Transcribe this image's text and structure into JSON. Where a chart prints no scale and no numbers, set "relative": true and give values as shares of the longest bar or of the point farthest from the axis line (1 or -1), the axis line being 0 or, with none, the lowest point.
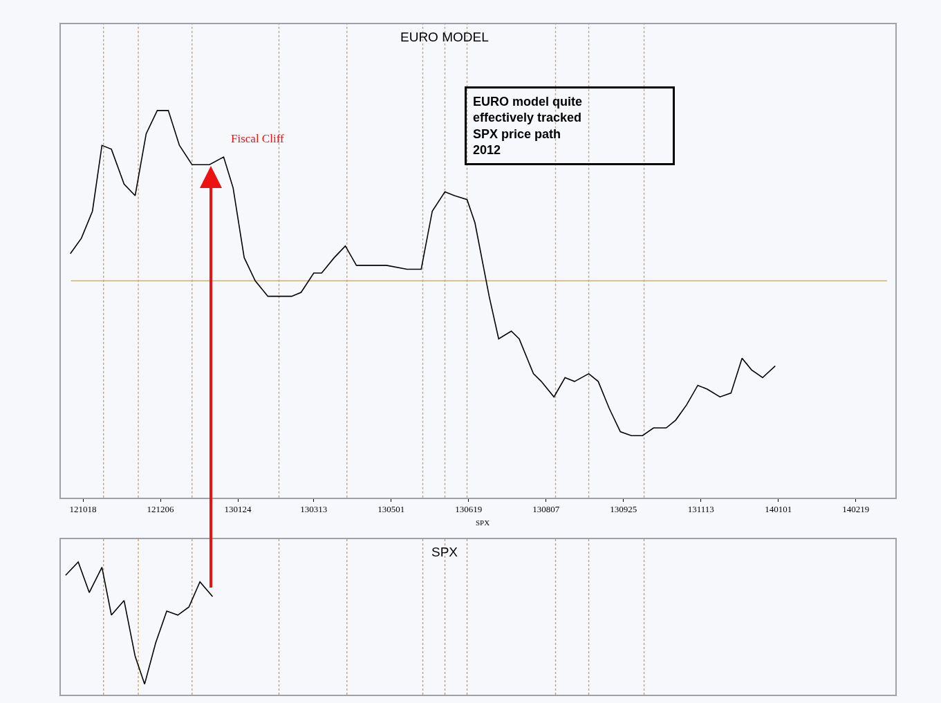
{
  "chart_data": [
    {
      "type": "line",
      "title": "EURO MODEL",
      "xlabel": "SPX",
      "relative": true,
      "color": "#000000",
      "line_style": "solid",
      "x": [
        "2012-10-10",
        "2012-10-17",
        "2012-10-24",
        "2012-10-30",
        "2012-11-05",
        "2012-11-13",
        "2012-11-20",
        "2012-11-27",
        "2012-12-04",
        "2012-12-11",
        "2012-12-18",
        "2012-12-26",
        "2013-01-06",
        "2013-01-15",
        "2013-01-21",
        "2013-01-28",
        "2013-02-04",
        "2013-02-12",
        "2013-02-20",
        "2013-02-27",
        "2013-03-05",
        "2013-03-13",
        "2013-03-18",
        "2013-03-26",
        "2013-04-02",
        "2013-04-09",
        "2013-04-15",
        "2013-04-28",
        "2013-05-11",
        "2013-05-20",
        "2013-05-27",
        "2013-06-04",
        "2013-06-10",
        "2013-06-18",
        "2013-06-23",
        "2013-07-02",
        "2013-07-08",
        "2013-07-16",
        "2013-07-21",
        "2013-07-30",
        "2013-08-04",
        "2013-08-12",
        "2013-08-19",
        "2013-08-25",
        "2013-09-03",
        "2013-09-09",
        "2013-09-16",
        "2013-09-23",
        "2013-09-30",
        "2013-10-07",
        "2013-10-14",
        "2013-10-22",
        "2013-10-28",
        "2013-11-04",
        "2013-11-11",
        "2013-11-17",
        "2013-11-25",
        "2013-12-02",
        "2013-12-09",
        "2013-12-15",
        "2013-12-22",
        "2013-12-30"
      ],
      "values": [
        0.63,
        0.67,
        0.74,
        0.91,
        0.9,
        0.81,
        0.78,
        0.94,
        1,
        1,
        0.91,
        0.86,
        0.86,
        0.88,
        0.8,
        0.62,
        0.56,
        0.52,
        0.52,
        0.52,
        0.53,
        0.58,
        0.58,
        0.62,
        0.65,
        0.6,
        0.6,
        0.6,
        0.59,
        0.59,
        0.74,
        0.79,
        0.78,
        0.77,
        0.71,
        0.52,
        0.41,
        0.43,
        0.41,
        0.32,
        0.3,
        0.26,
        0.31,
        0.3,
        0.32,
        0.3,
        0.23,
        0.17,
        0.16,
        0.16,
        0.18,
        0.18,
        0.2,
        0.24,
        0.29,
        0.28,
        0.26,
        0.27,
        0.36,
        0.33,
        0.31,
        0.34
      ],
      "xlim": [
        "2012-10-04",
        "2014-03-16"
      ],
      "xticks": [
        {
          "value": "2012-10-18",
          "label": "121018"
        },
        {
          "value": "2012-12-06",
          "label": "121206"
        },
        {
          "value": "2013-01-24",
          "label": "130124"
        },
        {
          "value": "2013-03-13",
          "label": "130313"
        },
        {
          "value": "2013-05-01",
          "label": "130501"
        },
        {
          "value": "2013-06-19",
          "label": "130619"
        },
        {
          "value": "2013-08-07",
          "label": "130807"
        },
        {
          "value": "2013-09-25",
          "label": "130925"
        },
        {
          "value": "2013-11-13",
          "label": "131113"
        },
        {
          "value": "2014-01-01",
          "label": "140101"
        },
        {
          "value": "2014-02-19",
          "label": "140219"
        }
      ],
      "tick_labels": "x",
      "ref_lines": [
        {
          "axis": "y",
          "value": 0.56,
          "color": "#c8b080",
          "line_style": "solid"
        },
        {
          "axis": "x",
          "value": "2012-10-31",
          "color": "#c8a070",
          "line_style": "dotted"
        },
        {
          "axis": "x",
          "value": "2012-11-22",
          "color": "#c8a070",
          "line_style": "dotted"
        },
        {
          "axis": "x",
          "value": "2012-12-26",
          "color": "#c8a070",
          "line_style": "dotted"
        },
        {
          "axis": "x",
          "value": "2013-02-19",
          "color": "#c8a070",
          "line_style": "dotted"
        },
        {
          "axis": "x",
          "value": "2013-04-03",
          "color": "#c8a070",
          "line_style": "dotted"
        },
        {
          "axis": "x",
          "value": "2013-05-21",
          "color": "#c8a070",
          "line_style": "dotted"
        },
        {
          "axis": "x",
          "value": "2013-06-04",
          "color": "#c8a070",
          "line_style": "dotted"
        },
        {
          "axis": "x",
          "value": "2013-06-18",
          "color": "#c8a070",
          "line_style": "dotted"
        },
        {
          "axis": "x",
          "value": "2013-08-13",
          "color": "#c8a070",
          "line_style": "dotted"
        },
        {
          "axis": "x",
          "value": "2013-09-03",
          "color": "#c8a070",
          "line_style": "dotted"
        },
        {
          "axis": "x",
          "value": "2013-10-08",
          "color": "#c8a070",
          "line_style": "dotted"
        }
      ],
      "annotations": [
        "Fiscal Cliff",
        "EURO model quite\neffectively tracked\nSPX price path\n2012"
      ]
    },
    {
      "type": "line",
      "title": "SPX",
      "relative": true,
      "color": "#000000",
      "line_style": "solid",
      "x": [
        "2012-10-07",
        "2012-10-15",
        "2012-10-22",
        "2012-10-30",
        "2012-11-05",
        "2012-11-13",
        "2012-11-20",
        "2012-11-26",
        "2012-12-03",
        "2012-12-10",
        "2012-12-17",
        "2012-12-24",
        "2012-12-31",
        "2013-01-08"
      ],
      "values": [
        0.9,
        1,
        0.77,
        0.96,
        0.6,
        0.71,
        0.29,
        0.08,
        0.39,
        0.63,
        0.6,
        0.66,
        0.85,
        0.74
      ],
      "xlim": [
        "2012-10-04",
        "2014-03-16"
      ],
      "tick_labels": false,
      "ref_lines": [
        {
          "axis": "x",
          "value": "2012-10-31",
          "color": "#c8a070",
          "line_style": "dotted"
        },
        {
          "axis": "x",
          "value": "2012-11-22",
          "color": "#c8a070",
          "line_style": "dotted"
        },
        {
          "axis": "x",
          "value": "2012-12-26",
          "color": "#c8a070",
          "line_style": "dotted"
        },
        {
          "axis": "x",
          "value": "2013-02-19",
          "color": "#c8a070",
          "line_style": "dotted"
        },
        {
          "axis": "x",
          "value": "2013-04-03",
          "color": "#c8a070",
          "line_style": "dotted"
        },
        {
          "axis": "x",
          "value": "2013-05-21",
          "color": "#c8a070",
          "line_style": "dotted"
        },
        {
          "axis": "x",
          "value": "2013-06-04",
          "color": "#c8a070",
          "line_style": "dotted"
        },
        {
          "axis": "x",
          "value": "2013-06-18",
          "color": "#c8a070",
          "line_style": "dotted"
        },
        {
          "axis": "x",
          "value": "2013-08-13",
          "color": "#c8a070",
          "line_style": "dotted"
        },
        {
          "axis": "x",
          "value": "2013-09-03",
          "color": "#c8a070",
          "line_style": "dotted"
        },
        {
          "axis": "x",
          "value": "2013-10-08",
          "color": "#c8a070",
          "line_style": "dotted"
        }
      ]
    }
  ]
}
